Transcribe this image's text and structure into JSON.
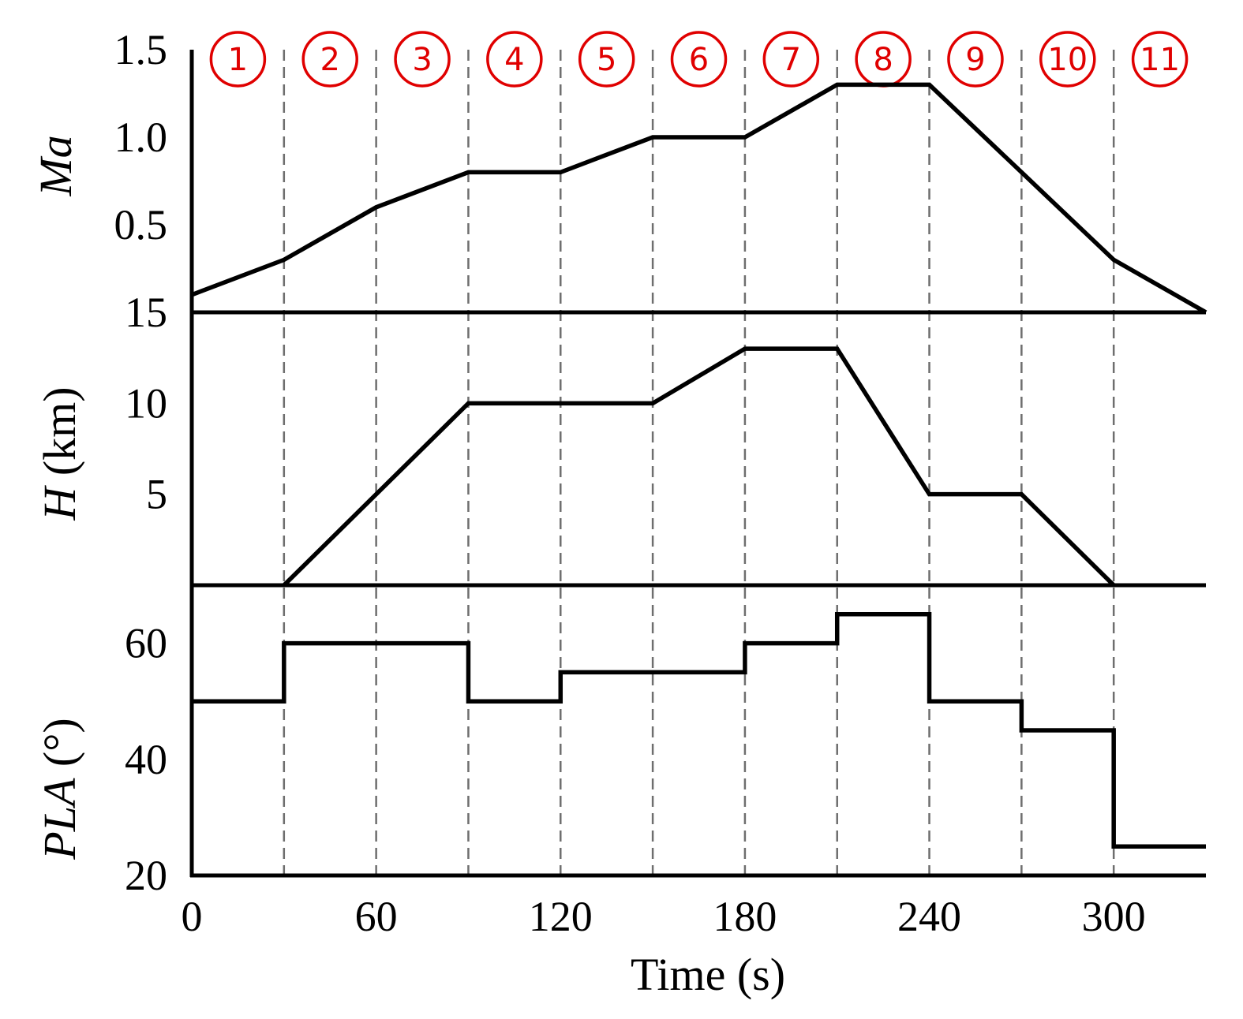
{
  "colors": {
    "phase": "#e00000",
    "line": "#000000",
    "dashed": "#6e6e6e"
  },
  "chart_data": {
    "type": "line",
    "xlabel": "Time (s)",
    "x_ticks": [
      "0",
      "60",
      "120",
      "180",
      "240",
      "300"
    ],
    "xlim": [
      0,
      330
    ],
    "x": [
      0,
      30,
      60,
      90,
      120,
      150,
      180,
      210,
      240,
      270,
      300,
      330
    ],
    "phase_boundaries": [
      30,
      60,
      90,
      120,
      150,
      180,
      210,
      240,
      270,
      300
    ],
    "phases": [
      "①",
      "②",
      "③",
      "④",
      "⑤",
      "⑥",
      "⑦",
      "⑧",
      "⑨",
      "⑩",
      "⑪"
    ],
    "panels": [
      {
        "key": "ma",
        "ylabel_italic": "Ma",
        "ylabel_rest": "",
        "y_ticks": [
          "1.5",
          "1.0",
          "0.5"
        ],
        "ylim": [
          0,
          1.5
        ],
        "grid": false,
        "values": [
          0.1,
          0.3,
          0.6,
          0.8,
          0.8,
          1.0,
          1.0,
          1.3,
          1.3,
          0.8,
          0.3,
          0.0
        ]
      },
      {
        "key": "h",
        "ylabel_italic": "H",
        "ylabel_rest": " (km)",
        "y_ticks": [
          "15",
          "10",
          "5"
        ],
        "ylim": [
          0,
          15
        ],
        "grid": false,
        "values": [
          null,
          0,
          5,
          10,
          10,
          10,
          13,
          13,
          5,
          5,
          0,
          null
        ]
      },
      {
        "key": "pla",
        "ylabel_italic": "PLA",
        "ylabel_rest": " (°)",
        "y_ticks": [
          "60",
          "40",
          "20"
        ],
        "ylim": [
          20,
          70
        ],
        "grid": false,
        "step": true,
        "step_values": [
          50,
          60,
          60,
          50,
          55,
          55,
          60,
          65,
          50,
          45,
          25
        ]
      }
    ]
  }
}
